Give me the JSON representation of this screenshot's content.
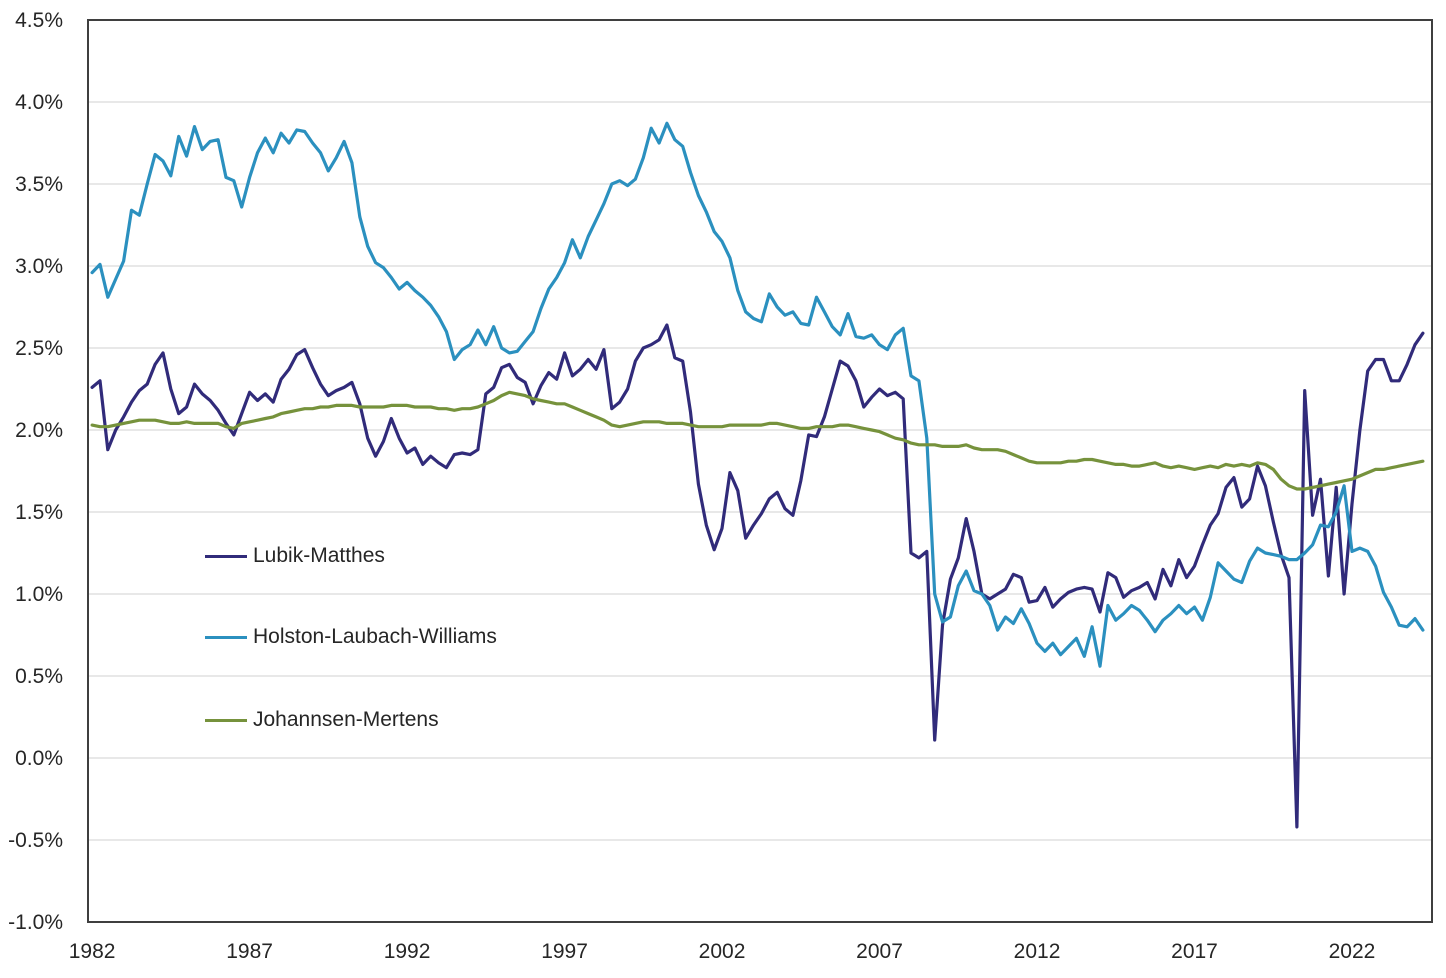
{
  "chart_data": {
    "type": "line",
    "title": "",
    "xlabel": "",
    "ylabel": "",
    "grid": "horizontal",
    "legend_position": "inside-middle-left",
    "x_start": 1982.0,
    "x_step_years": 0.25,
    "x_axis": {
      "tick_values": [
        1982,
        1987,
        1992,
        1997,
        2002,
        2007,
        2012,
        2017,
        2022
      ],
      "tick_labels": [
        "1982",
        "1987",
        "1992",
        "1997",
        "2002",
        "2007",
        "2012",
        "2017",
        "2022"
      ]
    },
    "y_axis": {
      "min": -1.0,
      "max": 4.5,
      "tick_values": [
        4.5,
        4.0,
        3.5,
        3.0,
        2.5,
        2.0,
        1.5,
        1.0,
        0.5,
        0.0,
        -0.5,
        -1.0
      ],
      "tick_labels": [
        "4.5%",
        "4.0%",
        "3.5%",
        "3.0%",
        "2.5%",
        "2.0%",
        "1.5%",
        "1.0%",
        "0.5%",
        "0.0%",
        "-0.5%",
        "-1.0%"
      ]
    },
    "style": {
      "grid_color": "#d9d9d9",
      "border_color": "#3f3f3f",
      "tick_text_color": "#262626",
      "background": "#ffffff",
      "line_width": 3.2
    },
    "series": [
      {
        "name": "Lubik-Matthes",
        "color": "#312b7a",
        "values": [
          2.26,
          2.3,
          1.88,
          2.0,
          2.08,
          2.17,
          2.24,
          2.28,
          2.4,
          2.47,
          2.25,
          2.1,
          2.14,
          2.28,
          2.22,
          2.18,
          2.12,
          2.04,
          1.97,
          2.1,
          2.23,
          2.18,
          2.22,
          2.17,
          2.31,
          2.37,
          2.46,
          2.49,
          2.38,
          2.28,
          2.21,
          2.24,
          2.26,
          2.29,
          2.16,
          1.95,
          1.84,
          1.93,
          2.07,
          1.95,
          1.86,
          1.89,
          1.79,
          1.84,
          1.8,
          1.77,
          1.85,
          1.86,
          1.85,
          1.88,
          2.22,
          2.26,
          2.38,
          2.4,
          2.32,
          2.29,
          2.16,
          2.27,
          2.35,
          2.31,
          2.47,
          2.33,
          2.37,
          2.43,
          2.37,
          2.49,
          2.13,
          2.17,
          2.25,
          2.42,
          2.5,
          2.52,
          2.55,
          2.64,
          2.44,
          2.42,
          2.11,
          1.67,
          1.42,
          1.27,
          1.4,
          1.74,
          1.63,
          1.34,
          1.42,
          1.49,
          1.58,
          1.62,
          1.52,
          1.48,
          1.69,
          1.97,
          1.96,
          2.08,
          2.25,
          2.42,
          2.39,
          2.3,
          2.14,
          2.2,
          2.25,
          2.21,
          2.23,
          2.19,
          1.25,
          1.22,
          1.26,
          0.11,
          0.81,
          1.09,
          1.22,
          1.46,
          1.26,
          1.0,
          0.97,
          1.0,
          1.03,
          1.12,
          1.1,
          0.95,
          0.96,
          1.04,
          0.92,
          0.97,
          1.01,
          1.03,
          1.04,
          1.03,
          0.89,
          1.13,
          1.1,
          0.98,
          1.02,
          1.04,
          1.07,
          0.97,
          1.15,
          1.05,
          1.21,
          1.1,
          1.17,
          1.3,
          1.42,
          1.49,
          1.65,
          1.71,
          1.53,
          1.58,
          1.78,
          1.66,
          1.44,
          1.24,
          1.1,
          -0.42,
          2.24,
          1.48,
          1.7,
          1.11,
          1.65,
          1.0,
          1.55,
          2.0,
          2.36,
          2.43,
          2.43,
          2.3,
          2.3,
          2.4,
          2.52,
          2.59
        ]
      },
      {
        "name": "Holston-Laubach-Williams",
        "color": "#2b90bf",
        "values": [
          2.96,
          3.01,
          2.81,
          2.92,
          3.03,
          3.34,
          3.31,
          3.5,
          3.68,
          3.64,
          3.55,
          3.79,
          3.67,
          3.85,
          3.71,
          3.76,
          3.77,
          3.54,
          3.52,
          3.36,
          3.54,
          3.69,
          3.78,
          3.69,
          3.81,
          3.75,
          3.83,
          3.82,
          3.75,
          3.69,
          3.58,
          3.66,
          3.76,
          3.63,
          3.3,
          3.12,
          3.02,
          2.99,
          2.93,
          2.86,
          2.9,
          2.85,
          2.81,
          2.76,
          2.69,
          2.6,
          2.43,
          2.49,
          2.52,
          2.61,
          2.52,
          2.63,
          2.5,
          2.47,
          2.48,
          2.54,
          2.6,
          2.74,
          2.86,
          2.93,
          3.02,
          3.16,
          3.05,
          3.18,
          3.28,
          3.38,
          3.5,
          3.52,
          3.49,
          3.53,
          3.66,
          3.84,
          3.75,
          3.87,
          3.77,
          3.73,
          3.57,
          3.43,
          3.33,
          3.21,
          3.15,
          3.05,
          2.85,
          2.72,
          2.68,
          2.66,
          2.83,
          2.75,
          2.7,
          2.72,
          2.65,
          2.64,
          2.81,
          2.72,
          2.63,
          2.58,
          2.71,
          2.57,
          2.56,
          2.58,
          2.52,
          2.49,
          2.58,
          2.62,
          2.33,
          2.3,
          1.95,
          1.0,
          0.83,
          0.86,
          1.05,
          1.14,
          1.02,
          1.0,
          0.93,
          0.78,
          0.86,
          0.82,
          0.91,
          0.82,
          0.7,
          0.65,
          0.7,
          0.63,
          0.68,
          0.73,
          0.62,
          0.8,
          0.56,
          0.93,
          0.84,
          0.88,
          0.93,
          0.9,
          0.84,
          0.77,
          0.84,
          0.88,
          0.93,
          0.88,
          0.92,
          0.84,
          0.98,
          1.19,
          1.14,
          1.09,
          1.07,
          1.2,
          1.28,
          1.25,
          1.24,
          1.23,
          1.21,
          1.21,
          1.25,
          1.3,
          1.42,
          1.41,
          1.5,
          1.66,
          1.26,
          1.28,
          1.26,
          1.17,
          1.01,
          0.92,
          0.81,
          0.8,
          0.85,
          0.78
        ]
      },
      {
        "name": "Johannsen-Mertens",
        "color": "#76923c",
        "values": [
          2.03,
          2.02,
          2.02,
          2.03,
          2.04,
          2.05,
          2.06,
          2.06,
          2.06,
          2.05,
          2.04,
          2.04,
          2.05,
          2.04,
          2.04,
          2.04,
          2.04,
          2.02,
          2.01,
          2.04,
          2.05,
          2.06,
          2.07,
          2.08,
          2.1,
          2.11,
          2.12,
          2.13,
          2.13,
          2.14,
          2.14,
          2.15,
          2.15,
          2.15,
          2.14,
          2.14,
          2.14,
          2.14,
          2.15,
          2.15,
          2.15,
          2.14,
          2.14,
          2.14,
          2.13,
          2.13,
          2.12,
          2.13,
          2.13,
          2.14,
          2.16,
          2.18,
          2.21,
          2.23,
          2.22,
          2.21,
          2.19,
          2.18,
          2.17,
          2.16,
          2.16,
          2.14,
          2.12,
          2.1,
          2.08,
          2.06,
          2.03,
          2.02,
          2.03,
          2.04,
          2.05,
          2.05,
          2.05,
          2.04,
          2.04,
          2.04,
          2.03,
          2.02,
          2.02,
          2.02,
          2.02,
          2.03,
          2.03,
          2.03,
          2.03,
          2.03,
          2.04,
          2.04,
          2.03,
          2.02,
          2.01,
          2.01,
          2.02,
          2.02,
          2.02,
          2.03,
          2.03,
          2.02,
          2.01,
          2.0,
          1.99,
          1.97,
          1.95,
          1.94,
          1.92,
          1.91,
          1.91,
          1.91,
          1.9,
          1.9,
          1.9,
          1.91,
          1.89,
          1.88,
          1.88,
          1.88,
          1.87,
          1.85,
          1.83,
          1.81,
          1.8,
          1.8,
          1.8,
          1.8,
          1.81,
          1.81,
          1.82,
          1.82,
          1.81,
          1.8,
          1.79,
          1.79,
          1.78,
          1.78,
          1.79,
          1.8,
          1.78,
          1.77,
          1.78,
          1.77,
          1.76,
          1.77,
          1.78,
          1.77,
          1.79,
          1.78,
          1.79,
          1.78,
          1.8,
          1.79,
          1.76,
          1.7,
          1.66,
          1.64,
          1.64,
          1.65,
          1.66,
          1.67,
          1.68,
          1.69,
          1.7,
          1.72,
          1.74,
          1.76,
          1.76,
          1.77,
          1.78,
          1.79,
          1.8,
          1.81
        ]
      }
    ]
  }
}
